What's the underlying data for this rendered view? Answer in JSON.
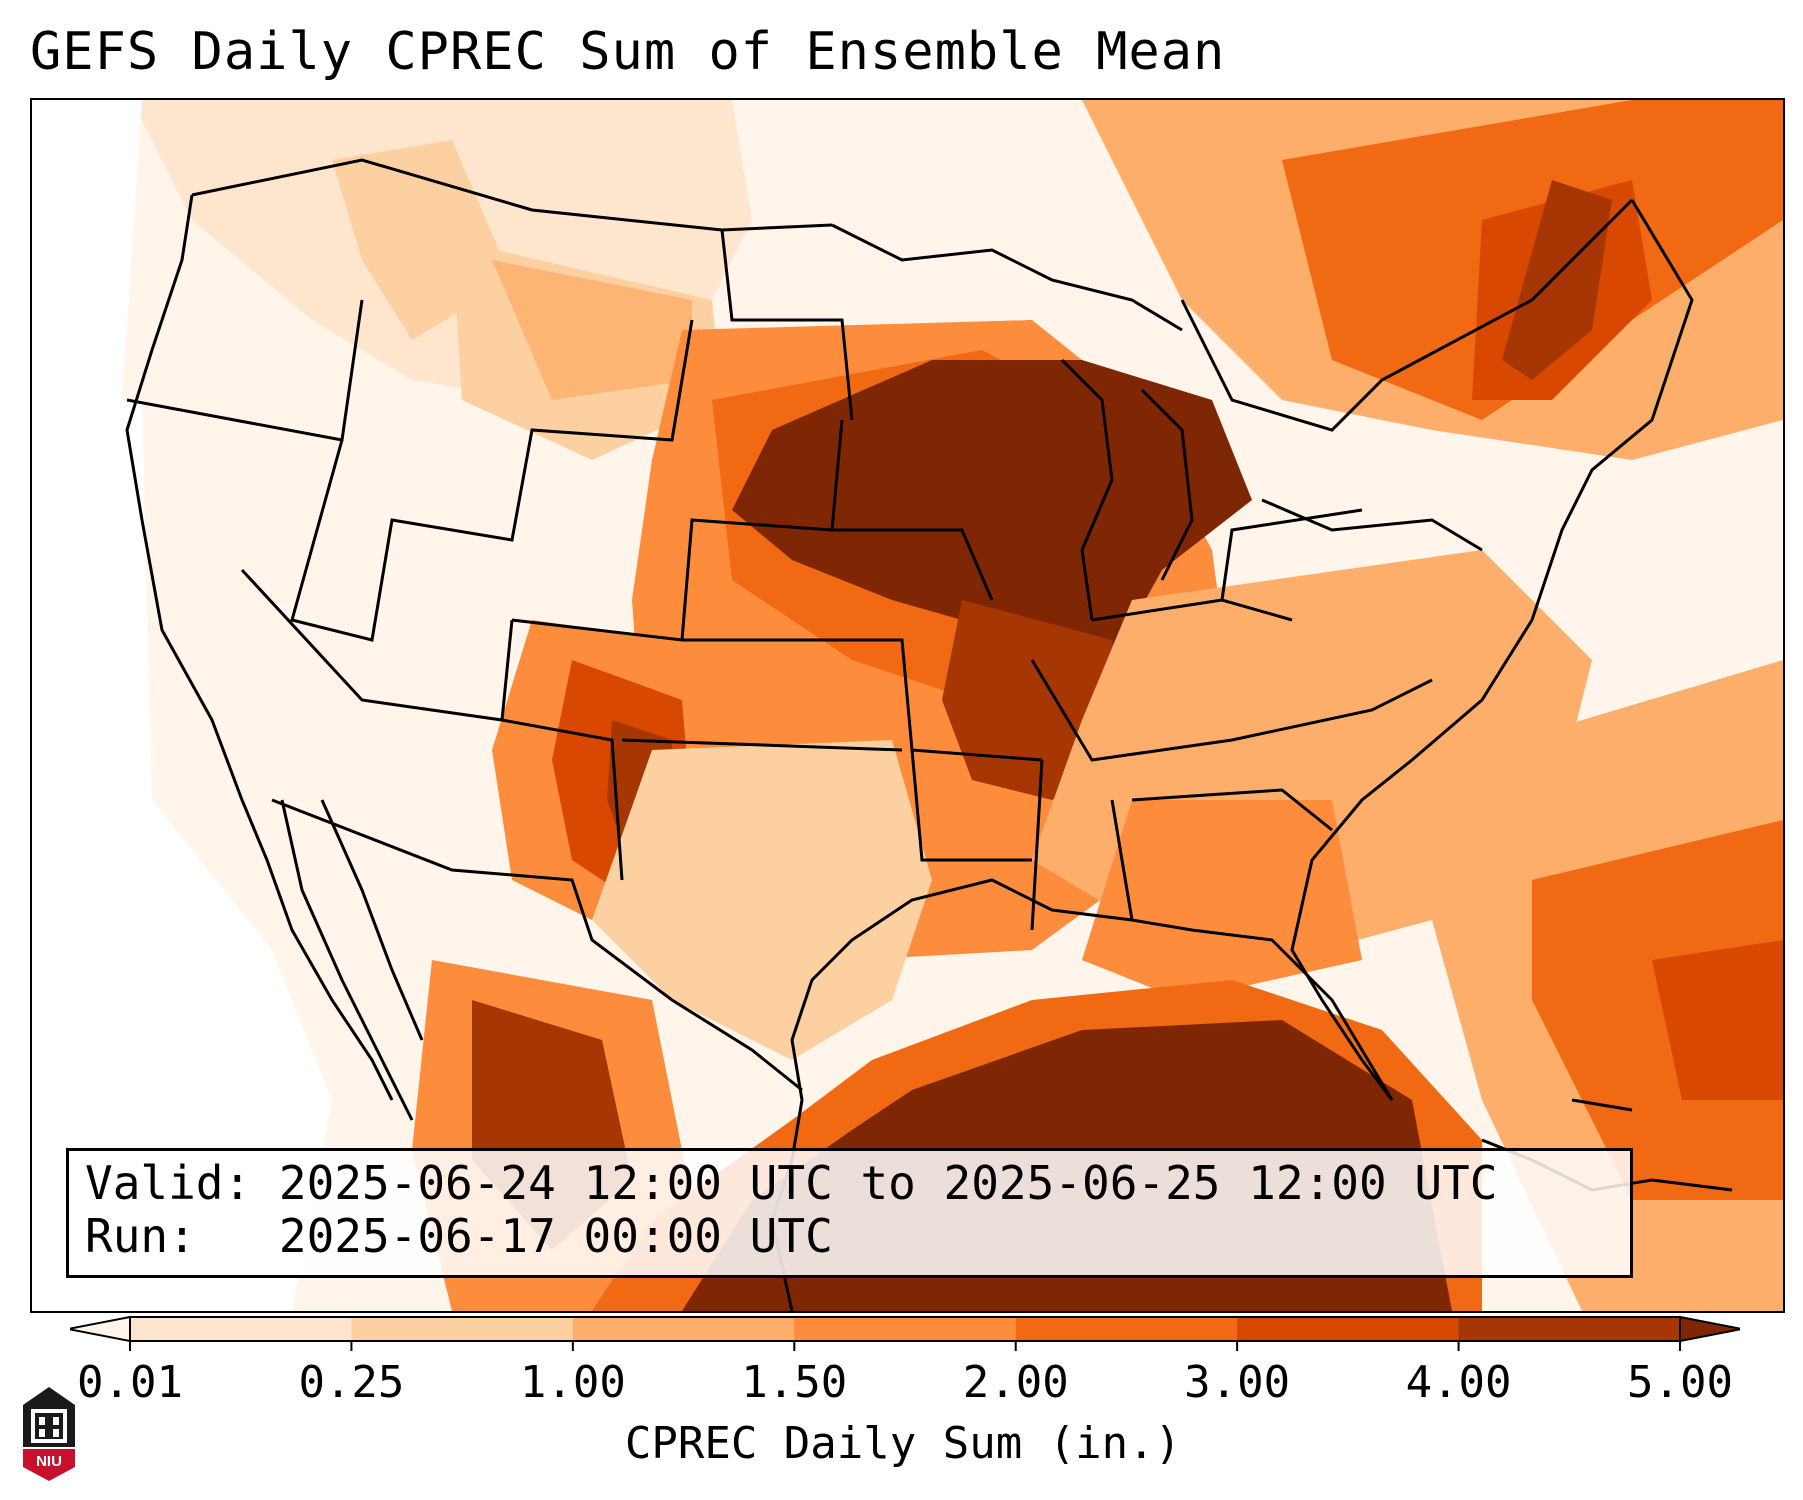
{
  "title": "GEFS Daily CPREC Sum of Ensemble Mean",
  "info": {
    "valid_label": "Valid:",
    "valid_value": "2025-06-24 12:00 UTC to 2025-06-25 12:00 UTC",
    "run_label": "Run:",
    "run_value": "2025-06-17 00:00 UTC"
  },
  "colorbar": {
    "label": "CPREC Daily Sum (in.)",
    "ticks": [
      "0.01",
      "0.25",
      "1.00",
      "1.50",
      "2.00",
      "3.00",
      "4.00",
      "5.00"
    ],
    "colors": [
      "#fff5eb",
      "#fee6ce",
      "#fdd0a2",
      "#fdae6b",
      "#fd8d3c",
      "#f16913",
      "#d94801",
      "#a63603",
      "#7f2704"
    ]
  },
  "logo": {
    "text": "NIU",
    "colors": {
      "dark": "#1a1a1a",
      "red": "#c8102e"
    }
  },
  "map": {
    "region": "Contiguous United States and Gulf of Mexico",
    "heavy_areas": [
      "Upper Midwest",
      "Iowa / Nebraska",
      "Gulf of Mexico",
      "Northern New Mexico"
    ]
  }
}
